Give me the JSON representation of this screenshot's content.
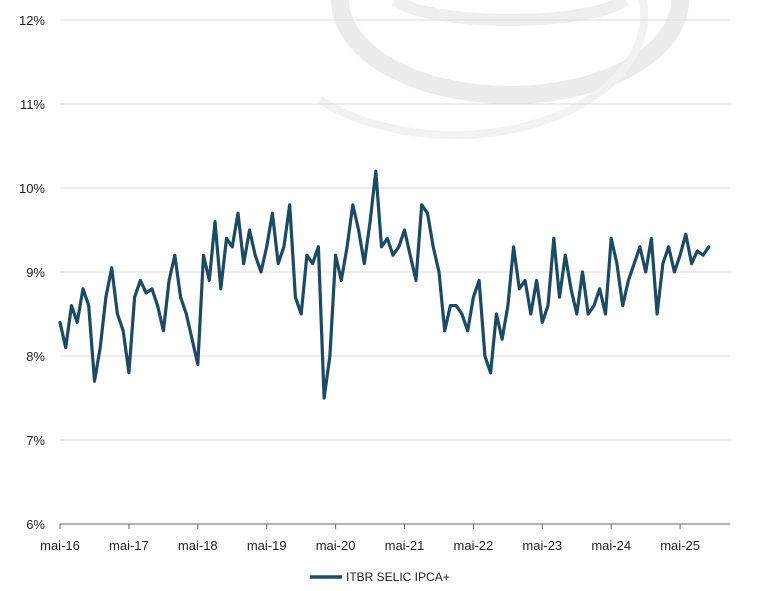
{
  "chart_data": {
    "type": "line",
    "title": "",
    "xlabel": "",
    "ylabel": "",
    "y_unit": "%",
    "ylim": [
      6,
      12
    ],
    "y_ticks": [
      "6%",
      "7%",
      "8%",
      "9%",
      "10%",
      "11%",
      "12%"
    ],
    "x_ticks": [
      "mai-16",
      "mai-17",
      "mai-18",
      "mai-19",
      "mai-20",
      "mai-21",
      "mai-22",
      "mai-23",
      "mai-24",
      "mai-25"
    ],
    "grid": "horizontal",
    "legend_position": "bottom",
    "series": [
      {
        "name": "ITBR SELIC IPCA+",
        "color": "#1c4a63",
        "x": [
          "2016-05",
          "2016-06",
          "2016-07",
          "2016-08",
          "2016-09",
          "2016-10",
          "2016-11",
          "2016-12",
          "2017-01",
          "2017-02",
          "2017-03",
          "2017-04",
          "2017-05",
          "2017-06",
          "2017-07",
          "2017-08",
          "2017-09",
          "2017-10",
          "2017-11",
          "2017-12",
          "2018-01",
          "2018-02",
          "2018-03",
          "2018-04",
          "2018-05",
          "2018-06",
          "2018-07",
          "2018-08",
          "2018-09",
          "2018-10",
          "2018-11",
          "2018-12",
          "2019-01",
          "2019-02",
          "2019-03",
          "2019-04",
          "2019-05",
          "2019-06",
          "2019-07",
          "2019-08",
          "2019-09",
          "2019-10",
          "2019-11",
          "2019-12",
          "2020-01",
          "2020-02",
          "2020-03",
          "2020-04",
          "2020-05",
          "2020-06",
          "2020-07",
          "2020-08",
          "2020-09",
          "2020-10",
          "2020-11",
          "2020-12",
          "2021-01",
          "2021-02",
          "2021-03",
          "2021-04",
          "2021-05",
          "2021-06",
          "2021-07",
          "2021-08",
          "2021-09",
          "2021-10",
          "2021-11",
          "2021-12",
          "2022-01",
          "2022-02",
          "2022-03",
          "2022-04",
          "2022-05",
          "2022-06",
          "2022-07",
          "2022-08",
          "2022-09",
          "2022-10",
          "2022-11",
          "2022-12",
          "2023-01",
          "2023-02",
          "2023-03",
          "2023-04",
          "2023-05",
          "2023-06",
          "2023-07",
          "2023-08",
          "2023-09",
          "2023-10",
          "2023-11",
          "2023-12",
          "2024-01",
          "2024-02",
          "2024-03",
          "2024-04",
          "2024-05",
          "2024-06",
          "2024-07",
          "2024-08",
          "2024-09",
          "2024-10",
          "2024-11",
          "2024-12",
          "2025-01",
          "2025-02",
          "2025-03",
          "2025-04",
          "2025-05",
          "2025-06",
          "2025-07",
          "2025-08",
          "2025-09",
          "2025-10"
        ],
        "values": [
          8.4,
          8.1,
          8.6,
          8.4,
          8.8,
          8.6,
          7.7,
          8.1,
          8.7,
          9.05,
          8.5,
          8.3,
          7.8,
          8.7,
          8.9,
          8.75,
          8.8,
          8.6,
          8.3,
          8.9,
          9.2,
          8.7,
          8.5,
          8.2,
          7.9,
          9.2,
          8.9,
          9.6,
          8.8,
          9.4,
          9.3,
          9.7,
          9.1,
          9.5,
          9.2,
          9.0,
          9.3,
          9.7,
          9.1,
          9.3,
          9.8,
          8.7,
          8.5,
          9.2,
          9.1,
          9.3,
          7.5,
          8.0,
          9.2,
          8.9,
          9.3,
          9.8,
          9.5,
          9.1,
          9.6,
          10.2,
          9.3,
          9.4,
          9.2,
          9.3,
          9.5,
          9.2,
          8.9,
          9.8,
          9.7,
          9.3,
          9.0,
          8.3,
          8.6,
          8.6,
          8.5,
          8.3,
          8.7,
          8.9,
          8.0,
          7.8,
          8.5,
          8.2,
          8.6,
          9.3,
          8.8,
          8.9,
          8.5,
          8.9,
          8.4,
          8.6,
          9.4,
          8.7,
          9.2,
          8.8,
          8.5,
          9.0,
          8.5,
          8.6,
          8.8,
          8.5,
          9.4,
          9.1,
          8.6,
          8.9,
          9.1,
          9.3,
          9.0,
          9.4,
          8.5,
          9.1,
          9.3,
          9.0,
          9.2,
          9.45,
          9.1,
          9.25,
          9.2,
          9.3
        ]
      }
    ]
  }
}
